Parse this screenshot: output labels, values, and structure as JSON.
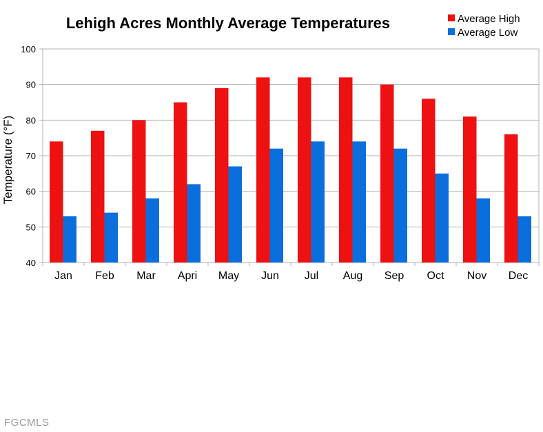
{
  "chart_data": {
    "type": "bar",
    "title": "Lehigh Acres Monthly Average Temperatures",
    "xlabel": "",
    "ylabel": "Temperature (°F)",
    "ylim": [
      40,
      100
    ],
    "yticks": [
      40,
      50,
      60,
      70,
      80,
      90,
      100
    ],
    "grid": true,
    "legend_position": "top-right",
    "categories": [
      "Jan",
      "Feb",
      "Mar",
      "Apri",
      "May",
      "Jun",
      "Jul",
      "Aug",
      "Sep",
      "Oct",
      "Nov",
      "Dec"
    ],
    "series": [
      {
        "name": "Average High",
        "color": "#ee1111",
        "values": [
          74,
          77,
          80,
          85,
          89,
          92,
          92,
          92,
          90,
          86,
          81,
          76
        ]
      },
      {
        "name": "Average Low",
        "color": "#0a6fdc",
        "values": [
          53,
          54,
          58,
          62,
          67,
          72,
          74,
          74,
          72,
          65,
          58,
          53
        ]
      }
    ]
  },
  "watermark": "FGCMLS"
}
